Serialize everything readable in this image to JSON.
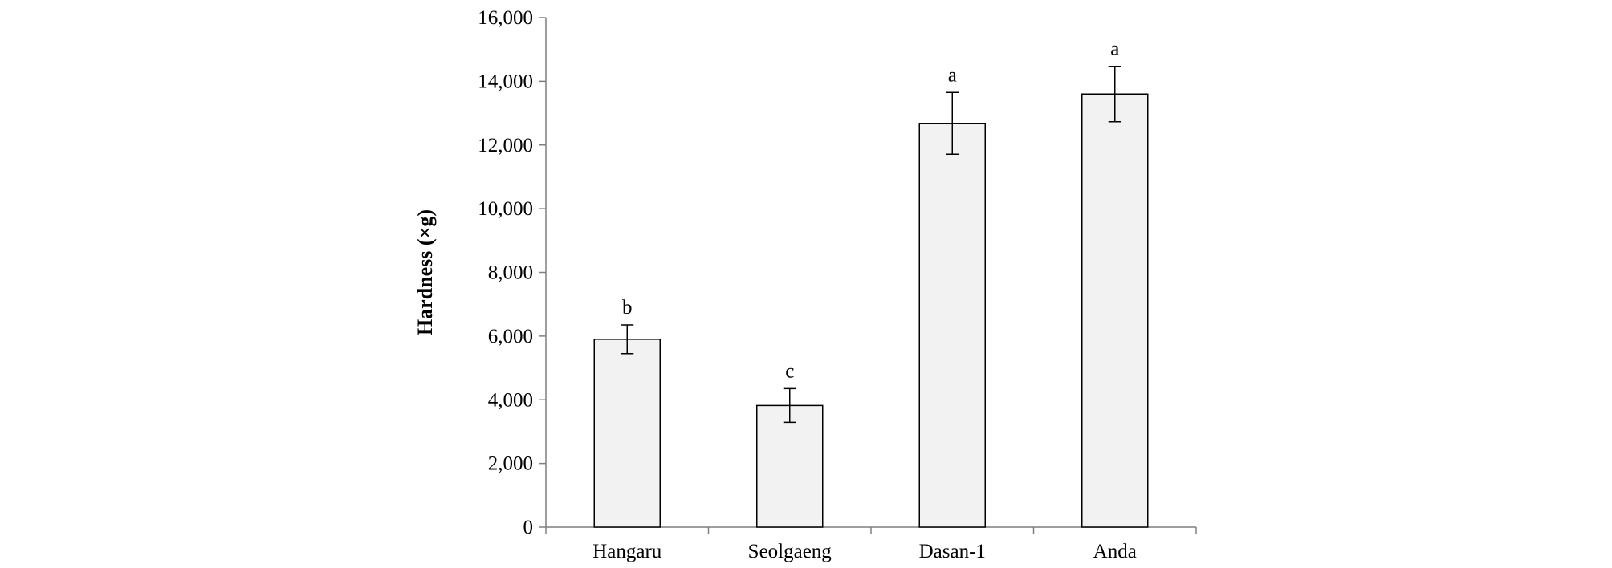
{
  "chart_data": {
    "type": "bar",
    "title": "",
    "xlabel": "",
    "ylabel": "Hardness (×g)",
    "ylim": [
      0,
      16000
    ],
    "yticks": [
      0,
      2000,
      4000,
      6000,
      8000,
      10000,
      12000,
      14000,
      16000
    ],
    "ytick_labels": [
      "0",
      "2,000",
      "4,000",
      "6,000",
      "8,000",
      "10,000",
      "12,000",
      "14,000",
      "16,000"
    ],
    "categories": [
      "Hangaru",
      "Seolgaeng",
      "Dasan-1",
      "Anda"
    ],
    "values": [
      5900,
      3820,
      12680,
      13600
    ],
    "errors": [
      450,
      530,
      970,
      870
    ],
    "significance_labels": [
      "b",
      "c",
      "a",
      "a"
    ],
    "grid": false,
    "legend": "none",
    "colors": {
      "bar_fill": "#f2f2f2",
      "bar_stroke": "#000000",
      "axis": "#7f7f7f",
      "error_bar": "#000000"
    }
  }
}
